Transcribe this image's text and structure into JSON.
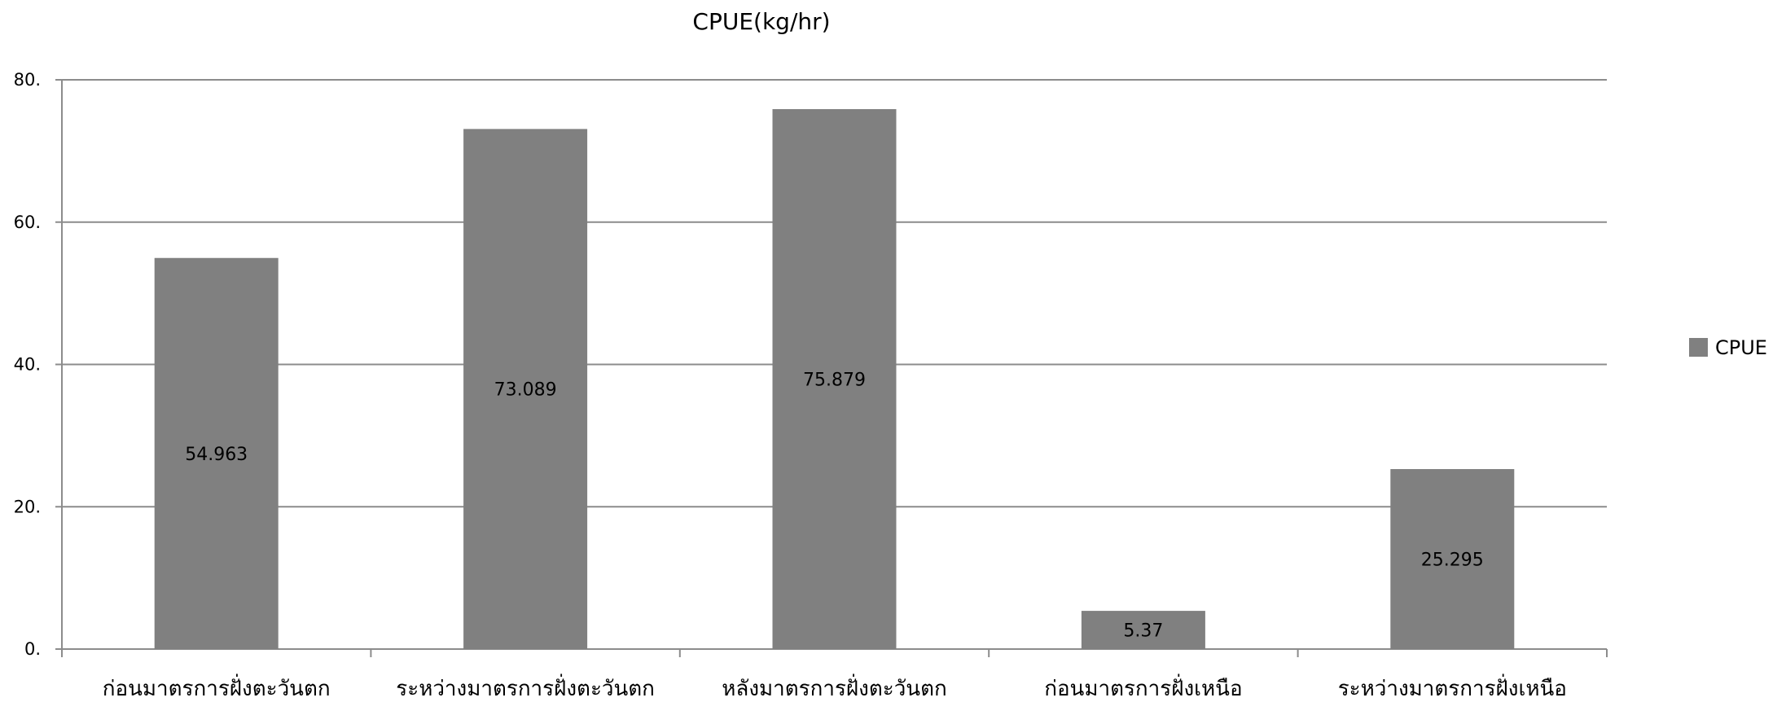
{
  "chart_data": {
    "type": "bar",
    "title": "CPUE(kg/hr)",
    "categories": [
      "ก่อนมาตรการฝั่งตะวันตก",
      "ระหว่างมาตรการฝั่งตะวันตก",
      "หลังมาตรการฝั่งตะวันตก",
      "ก่อนมาตรการฝั่งเหนือ",
      "ระหว่างมาตรการฝั่งเหนือ"
    ],
    "series": [
      {
        "name": "CPUE",
        "values": [
          54.963,
          73.089,
          75.879,
          5.37,
          25.295
        ],
        "labels": [
          "54.963",
          "73.089",
          "75.879",
          "5.37",
          "25.295"
        ],
        "color": "#808080"
      }
    ],
    "ylim": [
      0,
      80
    ],
    "yticks": [
      {
        "value": 0,
        "label": "0."
      },
      {
        "value": 20,
        "label": "20."
      },
      {
        "value": 40,
        "label": "40."
      },
      {
        "value": 60,
        "label": "60."
      },
      {
        "value": 80,
        "label": "80."
      }
    ],
    "grid": true,
    "legend_position": "right",
    "xlabel": "",
    "ylabel": ""
  }
}
